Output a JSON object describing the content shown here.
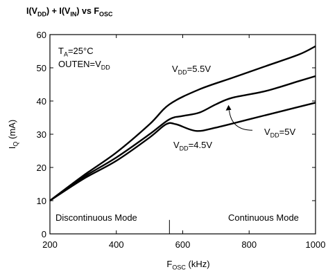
{
  "chart_data": {
    "type": "line",
    "title": {
      "parts": [
        {
          "t": "I(V"
        },
        {
          "t": "DD",
          "sub": true
        },
        {
          "t": ") + I(V"
        },
        {
          "t": "IN",
          "sub": true
        },
        {
          "t": ") vs F"
        },
        {
          "t": "OSC",
          "sub": true
        }
      ]
    },
    "xlabel": {
      "parts": [
        {
          "t": "F"
        },
        {
          "t": "OSC",
          "sub": true
        },
        {
          "t": " (kHz)"
        }
      ]
    },
    "ylabel": {
      "parts": [
        {
          "t": "I"
        },
        {
          "t": "Q",
          "sub": true
        },
        {
          "t": " (mA)"
        }
      ]
    },
    "xlim": [
      200,
      1000
    ],
    "ylim": [
      0,
      60
    ],
    "xticks": [
      "200",
      "400",
      "600",
      "800",
      "1000"
    ],
    "yticks": [
      "0",
      "10",
      "20",
      "30",
      "40",
      "50",
      "60"
    ],
    "grid": false,
    "conditions": [
      {
        "parts": [
          {
            "t": "T"
          },
          {
            "t": "A",
            "sub": true
          },
          {
            "t": "=25°C"
          }
        ]
      },
      {
        "parts": [
          {
            "t": "OUTEN=V"
          },
          {
            "t": "DD",
            "sub": true
          }
        ]
      }
    ],
    "region_boundary_x": 560,
    "regions": [
      "Discontinuous Mode",
      "Continuous Mode"
    ],
    "series": [
      {
        "name": {
          "parts": [
            {
              "t": "V"
            },
            {
              "t": "DD",
              "sub": true
            },
            {
              "t": "=5.5V"
            }
          ]
        },
        "x": [
          200,
          300,
          400,
          500,
          560,
          650,
          750,
          850,
          950,
          1000
        ],
        "y": [
          10,
          17.5,
          24.5,
          33,
          39,
          43.5,
          47,
          50.5,
          54,
          56.5
        ]
      },
      {
        "name": {
          "parts": [
            {
              "t": "V"
            },
            {
              "t": "DD",
              "sub": true
            },
            {
              "t": "=5V"
            }
          ]
        },
        "x": [
          200,
          300,
          400,
          500,
          560,
          600,
          650,
          700,
          750,
          850,
          950,
          1000
        ],
        "y": [
          10,
          17,
          23,
          30,
          34.5,
          35.5,
          36.5,
          39,
          41,
          43,
          46,
          47.5
        ]
      },
      {
        "name": {
          "parts": [
            {
              "t": "V"
            },
            {
              "t": "DD",
              "sub": true
            },
            {
              "t": "=4.5V"
            }
          ]
        },
        "x": [
          200,
          300,
          400,
          500,
          550,
          580,
          640,
          700,
          800,
          900,
          1000
        ],
        "y": [
          10,
          16.5,
          22,
          29,
          33,
          33,
          31,
          32,
          34.5,
          37,
          39.5
        ]
      }
    ]
  }
}
